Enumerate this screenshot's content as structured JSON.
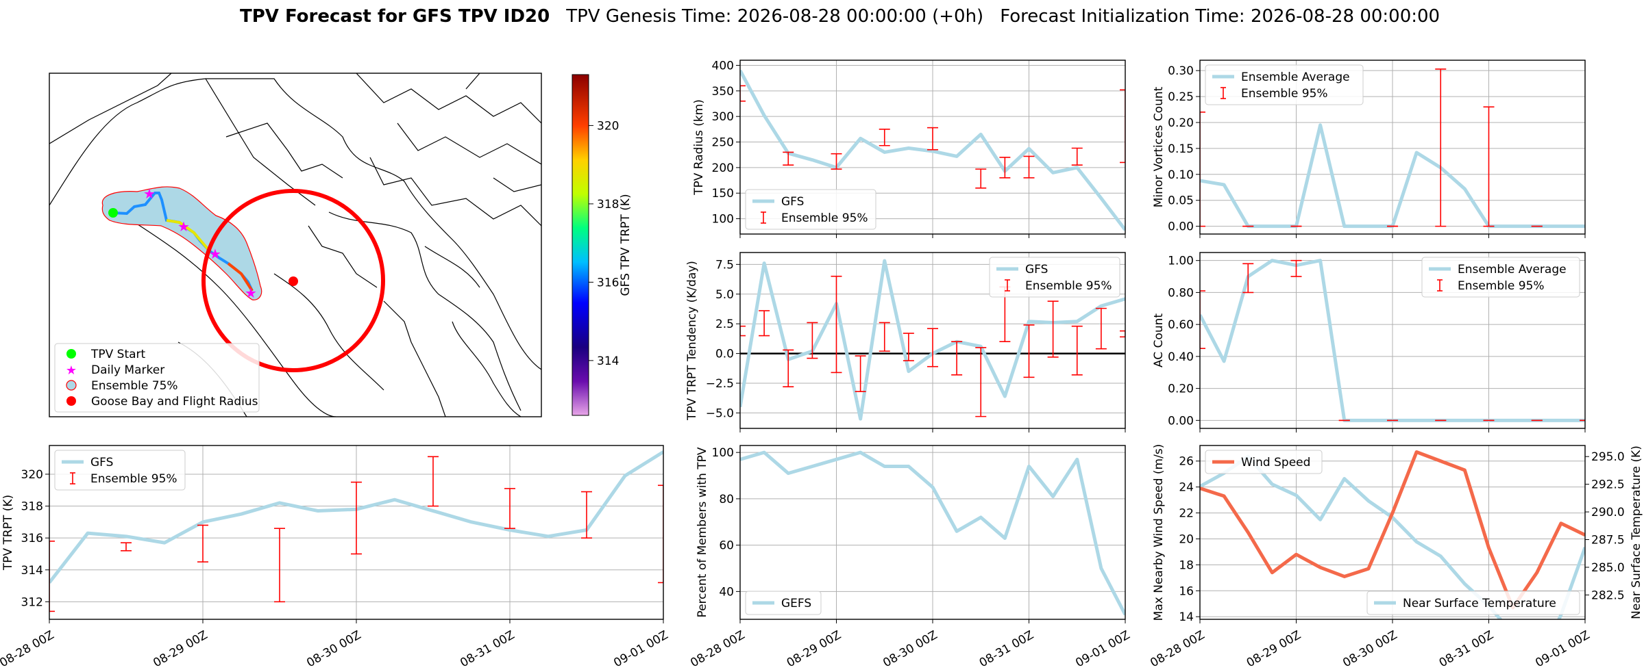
{
  "figure": {
    "title_bold": "TPV Forecast for GFS TPV ID20",
    "title_genesis": "TPV Genesis Time: 2026-08-28 00:00:00 (+0h)",
    "title_init": "Forecast Initialization Time: 2026-08-28 00:00:00"
  },
  "colors": {
    "gfs_line": "#add8e6",
    "ensemble_bar": "#ff0000",
    "wind_line": "#f4694a",
    "temp_axis": "#4169e1",
    "grid": "#b0b0b0"
  },
  "map": {
    "legend": [
      "TPV Start",
      "Daily Marker",
      "Ensemble 75%",
      "Goose Bay and Flight Radius"
    ],
    "colorbar_label": "GFS TPV TRPT (K)",
    "colorbar_ticks": [
      "314",
      "316",
      "318",
      "320"
    ],
    "colorbar_range": [
      312.6,
      321.3
    ]
  },
  "time_ticks": [
    "08-28 00Z",
    "08-29 00Z",
    "08-30 00Z",
    "08-31 00Z",
    "09-01 00Z"
  ],
  "chart_data": [
    {
      "id": "radius",
      "type": "line",
      "ylabel": "TPV Radius (km)",
      "ylim": [
        70,
        410
      ],
      "yticks": [
        100,
        150,
        200,
        250,
        300,
        350,
        400
      ],
      "legend": [
        "GFS",
        "Ensemble 95%"
      ],
      "legend_pos": "bottom-left",
      "x": [
        0,
        0.25,
        0.5,
        0.75,
        1,
        1.25,
        1.5,
        1.75,
        2,
        2.25,
        2.5,
        2.75,
        3,
        3.25,
        3.5,
        3.75,
        4
      ],
      "values": [
        390,
        302,
        228,
        215,
        200,
        257,
        230,
        238,
        232,
        222,
        265,
        193,
        237,
        190,
        200,
        140,
        78
      ],
      "err_x": [
        0,
        0.5,
        1,
        1.5,
        2,
        2.5,
        2.75,
        3,
        3.5,
        4
      ],
      "err_lo": [
        330,
        205,
        197,
        243,
        235,
        160,
        180,
        180,
        205,
        210
      ],
      "err_hi": [
        360,
        230,
        227,
        275,
        278,
        197,
        220,
        222,
        238,
        352
      ]
    },
    {
      "id": "minor",
      "type": "line",
      "ylabel": "Minor Vortices Count",
      "ylim": [
        -0.015,
        0.32
      ],
      "yticks": [
        0.0,
        0.05,
        0.1,
        0.15,
        0.2,
        0.25,
        0.3
      ],
      "legend": [
        "Ensemble Average",
        "Ensemble 95%"
      ],
      "legend_pos": "top-left",
      "x": [
        0,
        0.25,
        0.5,
        0.75,
        1,
        1.25,
        1.5,
        1.75,
        2,
        2.25,
        2.5,
        2.75,
        3,
        3.25,
        3.5,
        3.75,
        4
      ],
      "values": [
        0.088,
        0.08,
        0,
        0,
        0,
        0.195,
        0,
        0,
        0,
        0.142,
        0.113,
        0.072,
        0,
        0,
        0,
        0,
        0
      ],
      "err_x": [
        0,
        0.5,
        1,
        2,
        2.5,
        3,
        3.5
      ],
      "err_lo": [
        0,
        0,
        0,
        0,
        0,
        0,
        0
      ],
      "err_hi": [
        0.22,
        0,
        0,
        0,
        0.303,
        0.23,
        0
      ]
    },
    {
      "id": "tendency",
      "type": "line",
      "ylabel": "TPV TRPT Tendency (K/day)",
      "ylim": [
        -6.3,
        8.5
      ],
      "yticks": [
        -5.0,
        -2.5,
        0.0,
        2.5,
        5.0,
        7.5
      ],
      "legend": [
        "GFS",
        "Ensemble 95%"
      ],
      "legend_pos": "top-right",
      "x": [
        0,
        0.25,
        0.5,
        0.75,
        1,
        1.25,
        1.5,
        1.75,
        2,
        2.25,
        2.5,
        2.75,
        3,
        3.25,
        3.5,
        3.75,
        4
      ],
      "values": [
        -4.5,
        7.6,
        -0.5,
        0.2,
        4.2,
        -5.5,
        7.8,
        -1.5,
        0,
        1,
        0.6,
        -3.6,
        2.7,
        2.6,
        2.7,
        4.0,
        4.6
      ],
      "err_x": [
        0,
        0.25,
        0.5,
        0.75,
        1,
        1.25,
        1.5,
        1.75,
        2,
        2.25,
        2.5,
        2.75,
        3,
        3.25,
        3.5,
        3.75,
        4
      ],
      "err_lo": [
        1.5,
        1.5,
        -2.8,
        -0.4,
        -1.6,
        -3.2,
        0.2,
        -0.6,
        -1.1,
        -1.8,
        -5.3,
        1.0,
        -2.0,
        -0.3,
        -1.8,
        0.4,
        1.4
      ],
      "err_hi": [
        2.3,
        3.6,
        0.3,
        2.6,
        6.5,
        -0.2,
        2.6,
        1.7,
        2.1,
        1.0,
        0.5,
        5.6,
        2.4,
        4.4,
        2.3,
        3.8,
        1.9
      ]
    },
    {
      "id": "ac",
      "type": "line",
      "ylabel": "AC Count",
      "ylim": [
        -0.05,
        1.05
      ],
      "yticks": [
        0.0,
        0.2,
        0.4,
        0.6,
        0.8,
        1.0
      ],
      "legend": [
        "Ensemble Average",
        "Ensemble 95%"
      ],
      "legend_pos": "top-right",
      "x": [
        0,
        0.25,
        0.5,
        0.75,
        1,
        1.25,
        1.5,
        1.75,
        2,
        2.25,
        2.5,
        2.75,
        3,
        3.25,
        3.5,
        3.75,
        4
      ],
      "values": [
        0.66,
        0.37,
        0.9,
        1,
        0.97,
        1,
        0,
        0,
        0,
        0,
        0,
        0,
        0,
        0,
        0,
        0,
        0
      ],
      "err_x": [
        0,
        0.5,
        1,
        1.5,
        2,
        2.5,
        3,
        3.5,
        4
      ],
      "err_lo": [
        0.45,
        0.8,
        0.9,
        0,
        0,
        0,
        0,
        0,
        0
      ],
      "err_hi": [
        0.81,
        0.98,
        1,
        0,
        0,
        0,
        0,
        0,
        0
      ]
    },
    {
      "id": "trpt",
      "type": "line",
      "ylabel": "TPV TRPT (K)",
      "ylim": [
        310.9,
        321.8
      ],
      "yticks": [
        312,
        314,
        316,
        318,
        320
      ],
      "legend": [
        "GFS",
        "Ensemble 95%"
      ],
      "legend_pos": "top-left",
      "x": [
        0,
        0.25,
        0.5,
        0.75,
        1,
        1.25,
        1.5,
        1.75,
        2,
        2.25,
        2.5,
        2.75,
        3,
        3.25,
        3.5,
        3.75,
        4
      ],
      "values": [
        313.2,
        316.3,
        316.1,
        315.7,
        317.0,
        317.5,
        318.2,
        317.7,
        317.8,
        318.4,
        317.7,
        317.0,
        316.5,
        316.1,
        316.5,
        319.9,
        321.4
      ],
      "err_x": [
        0,
        0.5,
        1,
        1.5,
        2,
        2.5,
        3,
        3.5,
        4
      ],
      "err_lo": [
        311.4,
        315.2,
        314.5,
        312.0,
        315.0,
        318.0,
        316.6,
        316.0,
        313.2
      ],
      "err_hi": [
        315.8,
        315.7,
        316.8,
        316.6,
        319.5,
        321.1,
        319.1,
        318.9,
        319.3
      ]
    },
    {
      "id": "members",
      "type": "line",
      "ylabel": "Percent of Members with TPV",
      "ylim": [
        28,
        103
      ],
      "yticks": [
        40,
        60,
        80,
        100
      ],
      "legend": [
        "GEFS"
      ],
      "legend_pos": "bottom-left",
      "x": [
        0,
        0.25,
        0.5,
        0.75,
        1,
        1.25,
        1.5,
        1.75,
        2,
        2.25,
        2.5,
        2.75,
        3,
        3.25,
        3.5,
        3.75,
        4
      ],
      "values": [
        97,
        100,
        91,
        94,
        97,
        100,
        94,
        94,
        85,
        66,
        72,
        63,
        94,
        81,
        97,
        50,
        30
      ]
    },
    {
      "id": "wind",
      "type": "line",
      "ylabel": "Max Nearby Wind Speed (m/s)",
      "ylabel_right": "Near Surface Temperature (K)",
      "ylim": [
        13.8,
        27.2
      ],
      "yticks": [
        14,
        16,
        18,
        20,
        22,
        24,
        26
      ],
      "ylim_right": [
        280.3,
        296.0
      ],
      "yticks_right": [
        282.5,
        285.0,
        287.5,
        290.0,
        292.5,
        295.0
      ],
      "legend": [
        "Wind Speed"
      ],
      "legend_right": [
        "Near Surface Temperature"
      ],
      "x": [
        0,
        0.25,
        0.5,
        0.75,
        1,
        1.25,
        1.5,
        1.75,
        2,
        2.25,
        2.5,
        2.75,
        3,
        3.25,
        3.5,
        3.75,
        4
      ],
      "series": [
        {
          "name": "Wind Speed",
          "values": [
            23.9,
            23.3,
            20.5,
            17.4,
            18.8,
            17.8,
            17.1,
            17.7,
            22.0,
            26.7,
            26.0,
            25.3,
            19.3,
            14.7,
            17.4,
            21.2,
            20.3
          ]
        },
        {
          "name": "Near Surface Temperature",
          "values": [
            292.3,
            293.5,
            295.0,
            292.5,
            291.5,
            289.3,
            293.0,
            291.0,
            289.5,
            287.3,
            286.0,
            283.5,
            281.5,
            279.0,
            276.0,
            280.7,
            286.8
          ]
        }
      ]
    }
  ]
}
